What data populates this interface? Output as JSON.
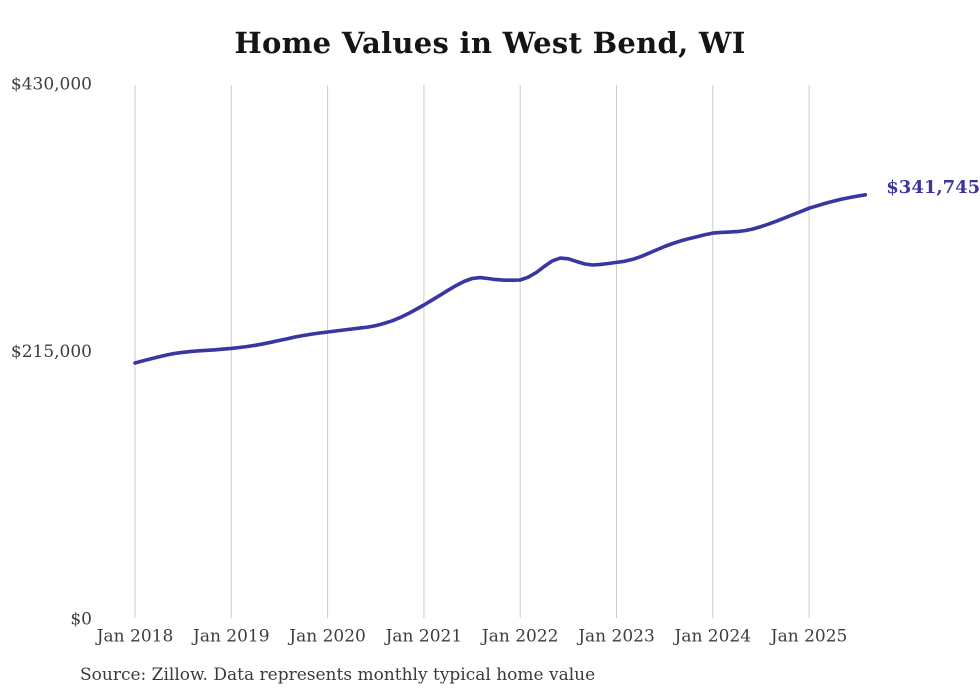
{
  "page": {
    "title": "Home Values in West Bend, WI",
    "source_note": "Source: Zillow. Data represents monthly typical home value",
    "background_color": "#ffffff"
  },
  "chart_data": {
    "type": "line",
    "title": "Home Values in West Bend, WI",
    "xlabel": "",
    "ylabel": "",
    "ylim": [
      0,
      430000
    ],
    "grid": "vertical-only",
    "legend": "none",
    "line_color": "#3a35a2",
    "grid_color": "#cccccc",
    "tick_text_color": "#3d3d3d",
    "title_color": "#151515",
    "end_label": "$341,745",
    "last_value": 341745,
    "y_ticks": [
      {
        "value": 430000,
        "label": "$430,000"
      },
      {
        "value": 215000,
        "label": "$215,000"
      },
      {
        "value": 0,
        "label": "$0"
      }
    ],
    "x_ticks": [
      {
        "month_index": 0,
        "label": "Jan 2018"
      },
      {
        "month_index": 12,
        "label": "Jan 2019"
      },
      {
        "month_index": 24,
        "label": "Jan 2020"
      },
      {
        "month_index": 36,
        "label": "Jan 2021"
      },
      {
        "month_index": 48,
        "label": "Jan 2022"
      },
      {
        "month_index": 60,
        "label": "Jan 2023"
      },
      {
        "month_index": 72,
        "label": "Jan 2024"
      },
      {
        "month_index": 84,
        "label": "Jan 2025"
      }
    ],
    "series": [
      {
        "name": "Monthly typical home value",
        "start": "Jan 2018",
        "end": "Aug 2025",
        "frequency": "monthly",
        "values": [
          206600,
          208300,
          210000,
          211600,
          213100,
          214300,
          215200,
          215900,
          216400,
          216800,
          217200,
          217700,
          218300,
          219000,
          219800,
          220800,
          222000,
          223300,
          224700,
          226100,
          227500,
          228700,
          229800,
          230700,
          231500,
          232300,
          233100,
          233900,
          234600,
          235400,
          236600,
          238300,
          240400,
          243000,
          246100,
          249600,
          253200,
          257000,
          261000,
          265000,
          268800,
          272100,
          274500,
          275200,
          274500,
          273600,
          273100,
          273100,
          273300,
          275500,
          279300,
          284200,
          288600,
          290900,
          290300,
          288200,
          286200,
          285300,
          285800,
          286500,
          287400,
          288300,
          289800,
          292000,
          294700,
          297500,
          300200,
          302600,
          304700,
          306500,
          308100,
          309600,
          311000,
          311500,
          311800,
          312200,
          313000,
          314300,
          316200,
          318400,
          320800,
          323300,
          325800,
          328400,
          331000,
          332900,
          334800,
          336500,
          338100,
          339500,
          340700,
          341745
        ]
      }
    ]
  }
}
